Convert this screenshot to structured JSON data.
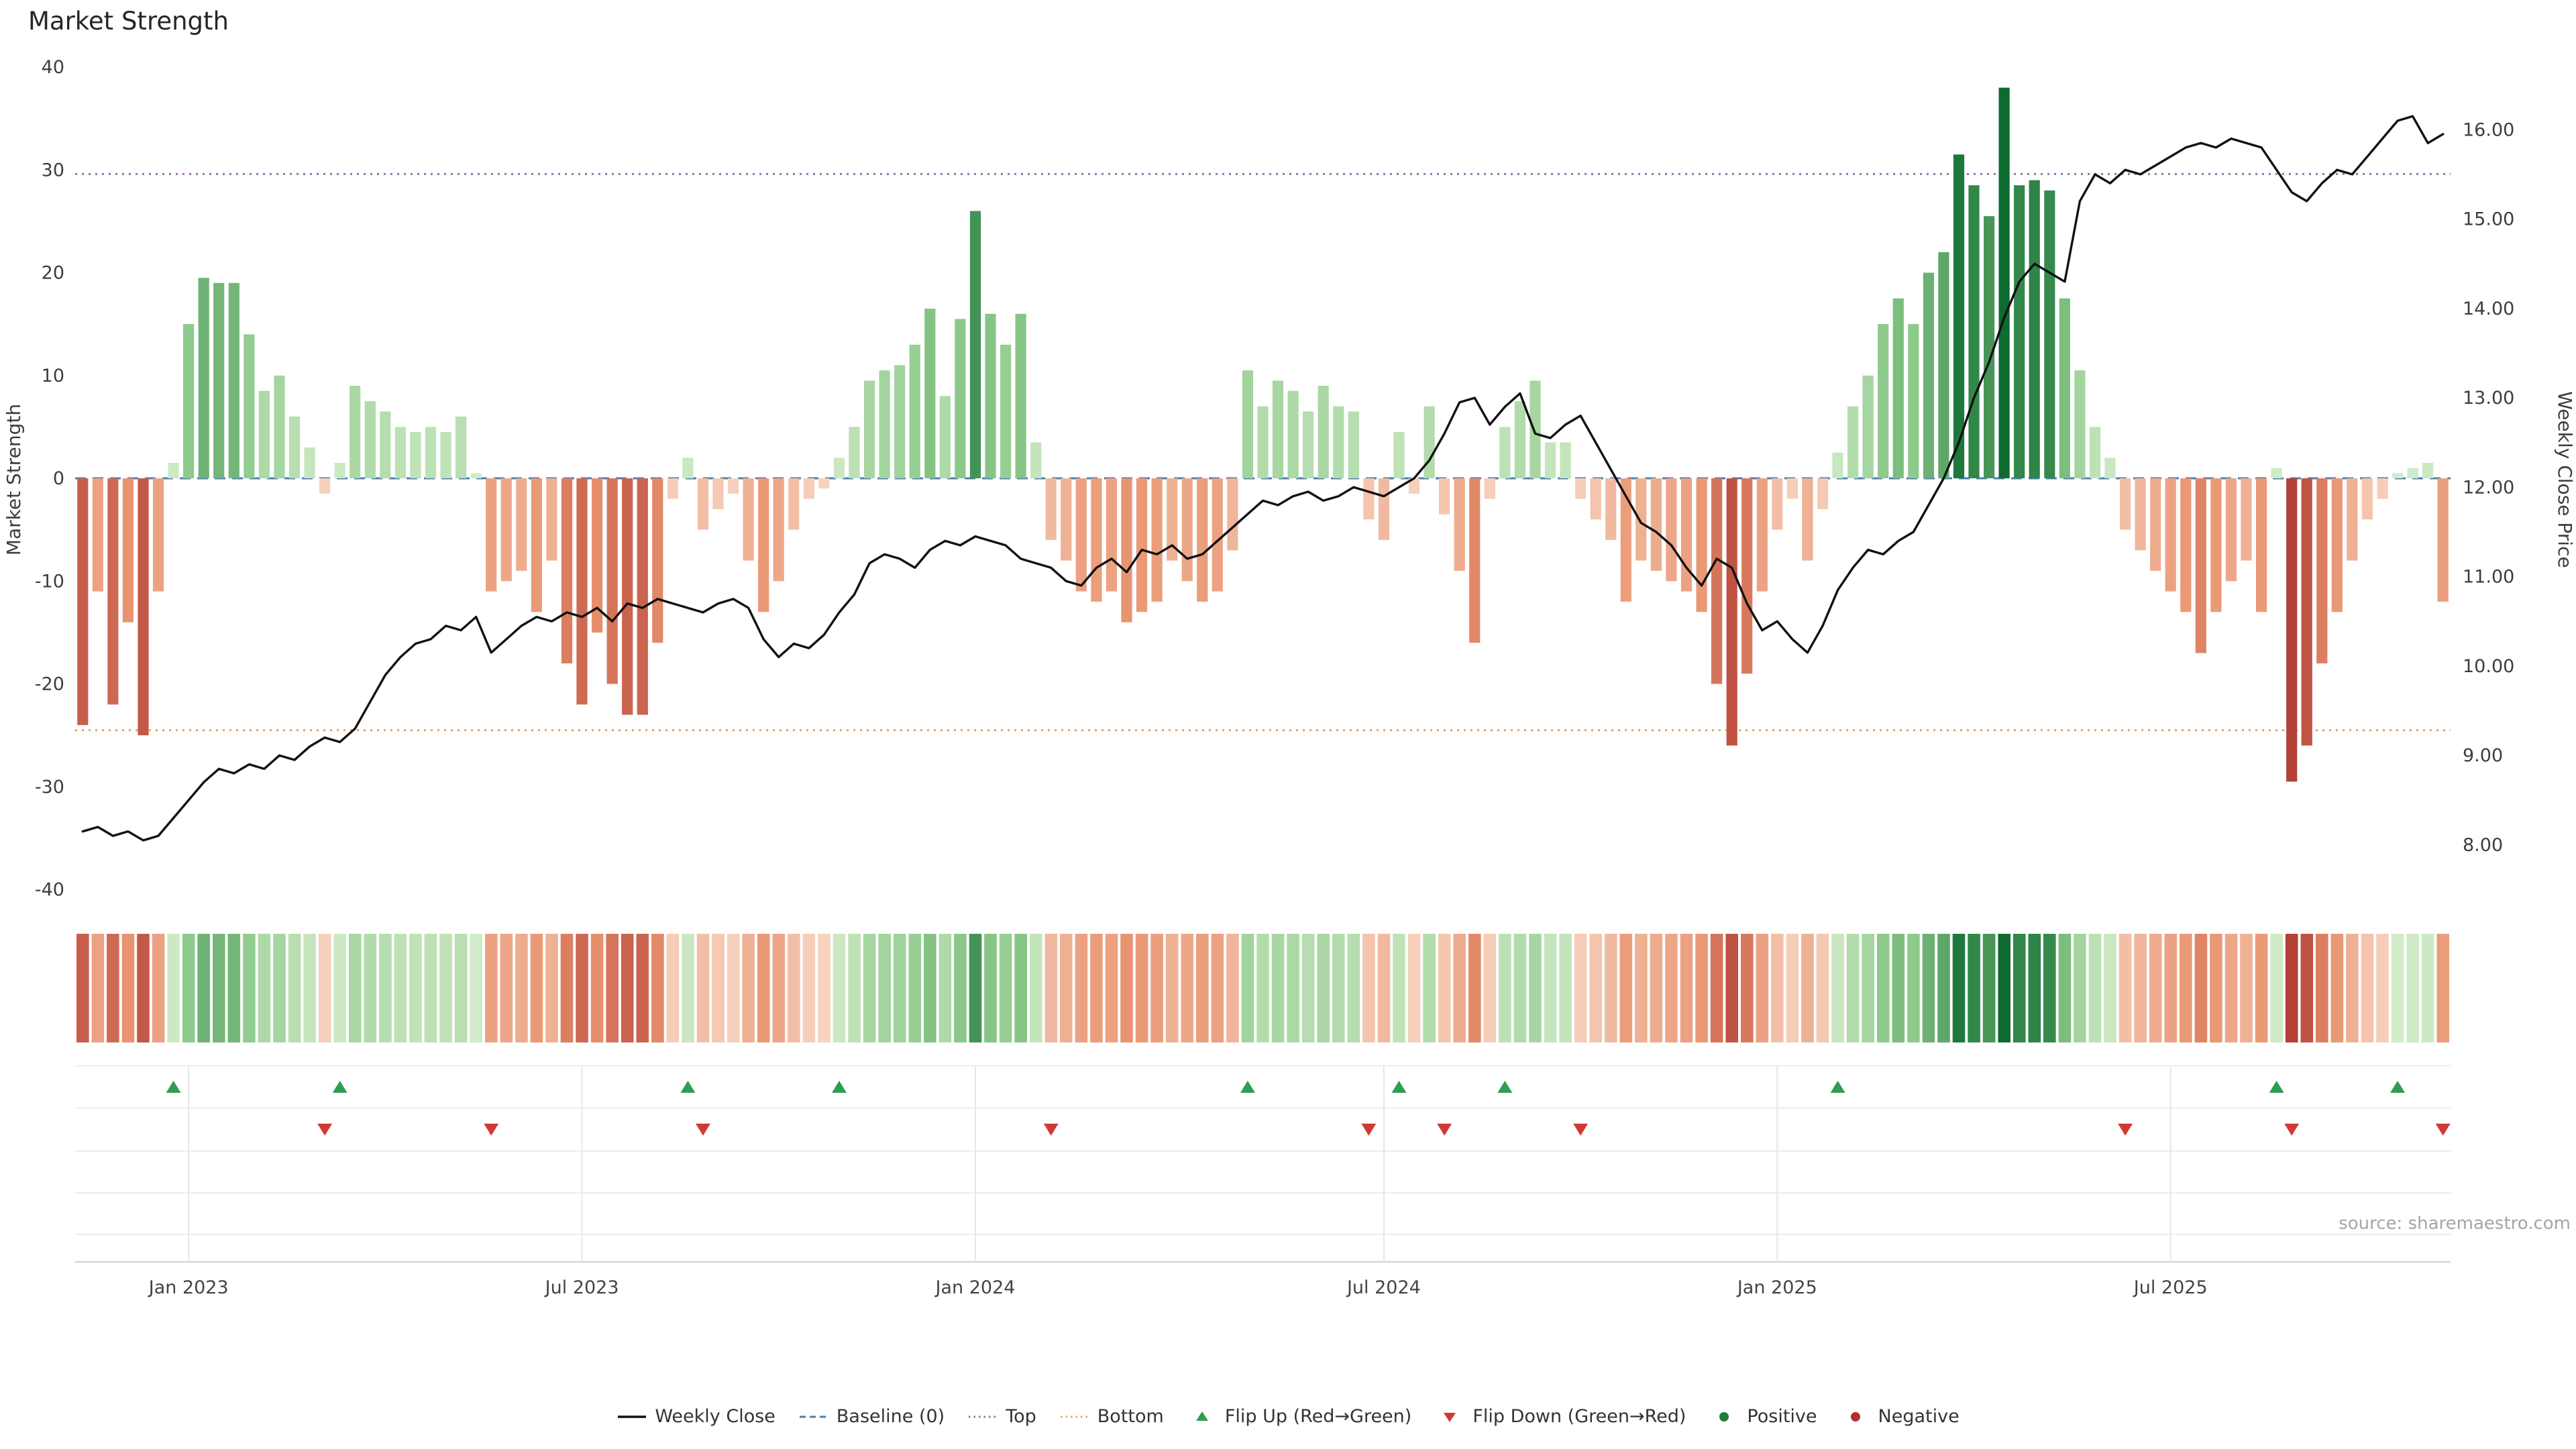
{
  "title": "Market Strength",
  "source_note": "source: sharemaestro.com",
  "axes": {
    "left_label": "Market Strength",
    "right_label": "Weekly Close Price",
    "left_ticks": [
      40,
      30,
      20,
      10,
      0,
      -10,
      -20,
      -30,
      -40
    ],
    "right_ticks": [
      {
        "label": "16.00",
        "value": 16
      },
      {
        "label": "15.00",
        "value": 15
      },
      {
        "label": "14.00",
        "value": 14
      },
      {
        "label": "13.00",
        "value": 13
      },
      {
        "label": "12.00",
        "value": 12
      },
      {
        "label": "11.00",
        "value": 11
      },
      {
        "label": "10.00",
        "value": 10
      },
      {
        "label": "9.00",
        "value": 9
      },
      {
        "label": "8.00",
        "value": 8
      }
    ],
    "x_ticks": [
      {
        "label": "Jan 2023",
        "week": 7
      },
      {
        "label": "Jul 2023",
        "week": 33
      },
      {
        "label": "Jan 2024",
        "week": 59
      },
      {
        "label": "Jul 2024",
        "week": 86
      },
      {
        "label": "Jan 2025",
        "week": 112
      },
      {
        "label": "Jul 2025",
        "week": 138
      }
    ]
  },
  "colors": {
    "pos_light": "#d4ecca",
    "pos_mid": "#8cc98a",
    "pos_dark": "#0d6b2f",
    "neg_light": "#f8d7c4",
    "neg_mid": "#e8926e",
    "neg_dark": "#ab332f",
    "price_line": "#111111",
    "baseline": "#4a7fb0",
    "top": "#9a6fad",
    "bottom": "#e2a566",
    "flip_up": "#2e9e4f",
    "flip_down": "#cf3b33",
    "grid": "#ededed",
    "axis_line": "#cfcfcf",
    "tick_text": "#3d3d3d",
    "source_text": "#a5a5a5"
  },
  "legend": [
    {
      "label": "Weekly Close",
      "symbol": "line",
      "color": "#111111"
    },
    {
      "label": "Baseline (0)",
      "symbol": "dashed-line",
      "color": "#4a7fb0"
    },
    {
      "label": "Top",
      "symbol": "dotted-line",
      "color": "#9a6fad"
    },
    {
      "label": "Bottom",
      "symbol": "dotted-line",
      "color": "#e2a566"
    },
    {
      "label": "Flip Up (Red→Green)",
      "symbol": "triangle-up",
      "color": "#2e9e4f"
    },
    {
      "label": "Flip Down (Green→Red)",
      "symbol": "triangle-down",
      "color": "#cf3b33"
    },
    {
      "label": "Positive",
      "symbol": "circle",
      "color": "#1e7d34"
    },
    {
      "label": "Negative",
      "symbol": "circle",
      "color": "#b03030"
    }
  ],
  "chart_data": [
    {
      "id": "strength_bars",
      "type": "bar",
      "title": "Market Strength weekly bars",
      "ylabel": "Market Strength",
      "ylim": [
        -40,
        40
      ],
      "x_unit": "week_index",
      "n_weeks": 157,
      "thresholds": {
        "baseline": 0,
        "top": 29.6,
        "bottom": -24.5
      },
      "values": [
        -24,
        -11,
        -22,
        -14,
        -25,
        -11,
        1.5,
        15,
        19.5,
        19,
        19,
        14,
        8.5,
        10,
        6,
        3,
        -1.5,
        1.5,
        9,
        7.5,
        6.5,
        5,
        4.5,
        5,
        4.5,
        6,
        0.5,
        -11,
        -10,
        -9,
        -13,
        -8,
        -18,
        -22,
        -15,
        -20,
        -23,
        -23,
        -16,
        -2,
        2,
        -5,
        -3,
        -1.5,
        -8,
        -13,
        -10,
        -5,
        -2,
        -1,
        2,
        5,
        9.5,
        10.5,
        11,
        13,
        16.5,
        8,
        15.5,
        26,
        16,
        13,
        16,
        3.5,
        -6,
        -8,
        -11,
        -12,
        -11,
        -14,
        -13,
        -12,
        -8,
        -10,
        -12,
        -11,
        -7,
        10.5,
        7,
        9.5,
        8.5,
        6.5,
        9,
        7,
        6.5,
        -4,
        -6,
        4.5,
        -1.5,
        7,
        -3.5,
        -9,
        -16,
        -2,
        5,
        7.5,
        9.5,
        3.5,
        3.5,
        -2,
        -4,
        -6,
        -12,
        -8,
        -9,
        -10,
        -11,
        -13,
        -20,
        -26,
        -19,
        -11,
        -5,
        -2,
        -8,
        -3,
        2.5,
        7,
        10,
        15,
        17.5,
        15,
        20,
        22,
        31.5,
        28.5,
        25.5,
        38,
        28.5,
        29,
        28,
        17.5,
        10.5,
        5,
        2,
        -5,
        -7,
        -9,
        -11,
        -13,
        -17,
        -13,
        -10,
        -8,
        -13,
        1,
        -29.5,
        -26,
        -18,
        -13,
        -8,
        -4,
        -2,
        0.5,
        1,
        1.5,
        -12
      ]
    },
    {
      "id": "weekly_close",
      "type": "line",
      "title": "Weekly Close",
      "ylabel": "Weekly Close Price",
      "ylim": [
        7.5,
        16.7
      ],
      "x_unit": "week_index",
      "values": [
        8.15,
        8.2,
        8.1,
        8.15,
        8.05,
        8.1,
        8.3,
        8.5,
        8.7,
        8.85,
        8.8,
        8.9,
        8.85,
        9.0,
        8.95,
        9.1,
        9.2,
        9.15,
        9.3,
        9.6,
        9.9,
        10.1,
        10.25,
        10.3,
        10.45,
        10.4,
        10.55,
        10.15,
        10.3,
        10.45,
        10.55,
        10.5,
        10.6,
        10.55,
        10.65,
        10.5,
        10.7,
        10.65,
        10.75,
        10.7,
        10.65,
        10.6,
        10.7,
        10.75,
        10.65,
        10.3,
        10.1,
        10.25,
        10.2,
        10.35,
        10.6,
        10.8,
        11.15,
        11.25,
        11.2,
        11.1,
        11.3,
        11.4,
        11.35,
        11.45,
        11.4,
        11.35,
        11.2,
        11.15,
        11.1,
        10.95,
        10.9,
        11.1,
        11.2,
        11.05,
        11.3,
        11.25,
        11.35,
        11.2,
        11.25,
        11.4,
        11.55,
        11.7,
        11.85,
        11.8,
        11.9,
        11.95,
        11.85,
        11.9,
        12.0,
        11.95,
        11.9,
        12.0,
        12.1,
        12.3,
        12.6,
        12.95,
        13.0,
        12.7,
        12.9,
        13.05,
        12.6,
        12.55,
        12.7,
        12.8,
        12.5,
        12.2,
        11.9,
        11.6,
        11.5,
        11.35,
        11.1,
        10.9,
        11.2,
        11.1,
        10.7,
        10.4,
        10.5,
        10.3,
        10.15,
        10.45,
        10.85,
        11.1,
        11.3,
        11.25,
        11.4,
        11.5,
        11.8,
        12.1,
        12.5,
        13.0,
        13.4,
        13.9,
        14.3,
        14.5,
        14.4,
        14.3,
        15.2,
        15.5,
        15.4,
        15.55,
        15.5,
        15.6,
        15.7,
        15.8,
        15.85,
        15.8,
        15.9,
        15.85,
        15.8,
        15.55,
        15.3,
        15.2,
        15.4,
        15.55,
        15.5,
        15.7,
        15.9,
        16.1,
        16.15,
        15.85,
        15.95
      ]
    },
    {
      "id": "strength_heatmap",
      "type": "heatmap",
      "title": "Market Strength color strip",
      "same_values_as": "strength_bars"
    },
    {
      "id": "flip_markers",
      "type": "scatter",
      "title": "Regime flip markers",
      "up_weeks": [
        6,
        17,
        40,
        50,
        77,
        87,
        94,
        116,
        145,
        153
      ],
      "down_weeks": [
        16,
        27,
        41,
        64,
        85,
        90,
        99,
        135,
        146,
        156
      ]
    }
  ]
}
